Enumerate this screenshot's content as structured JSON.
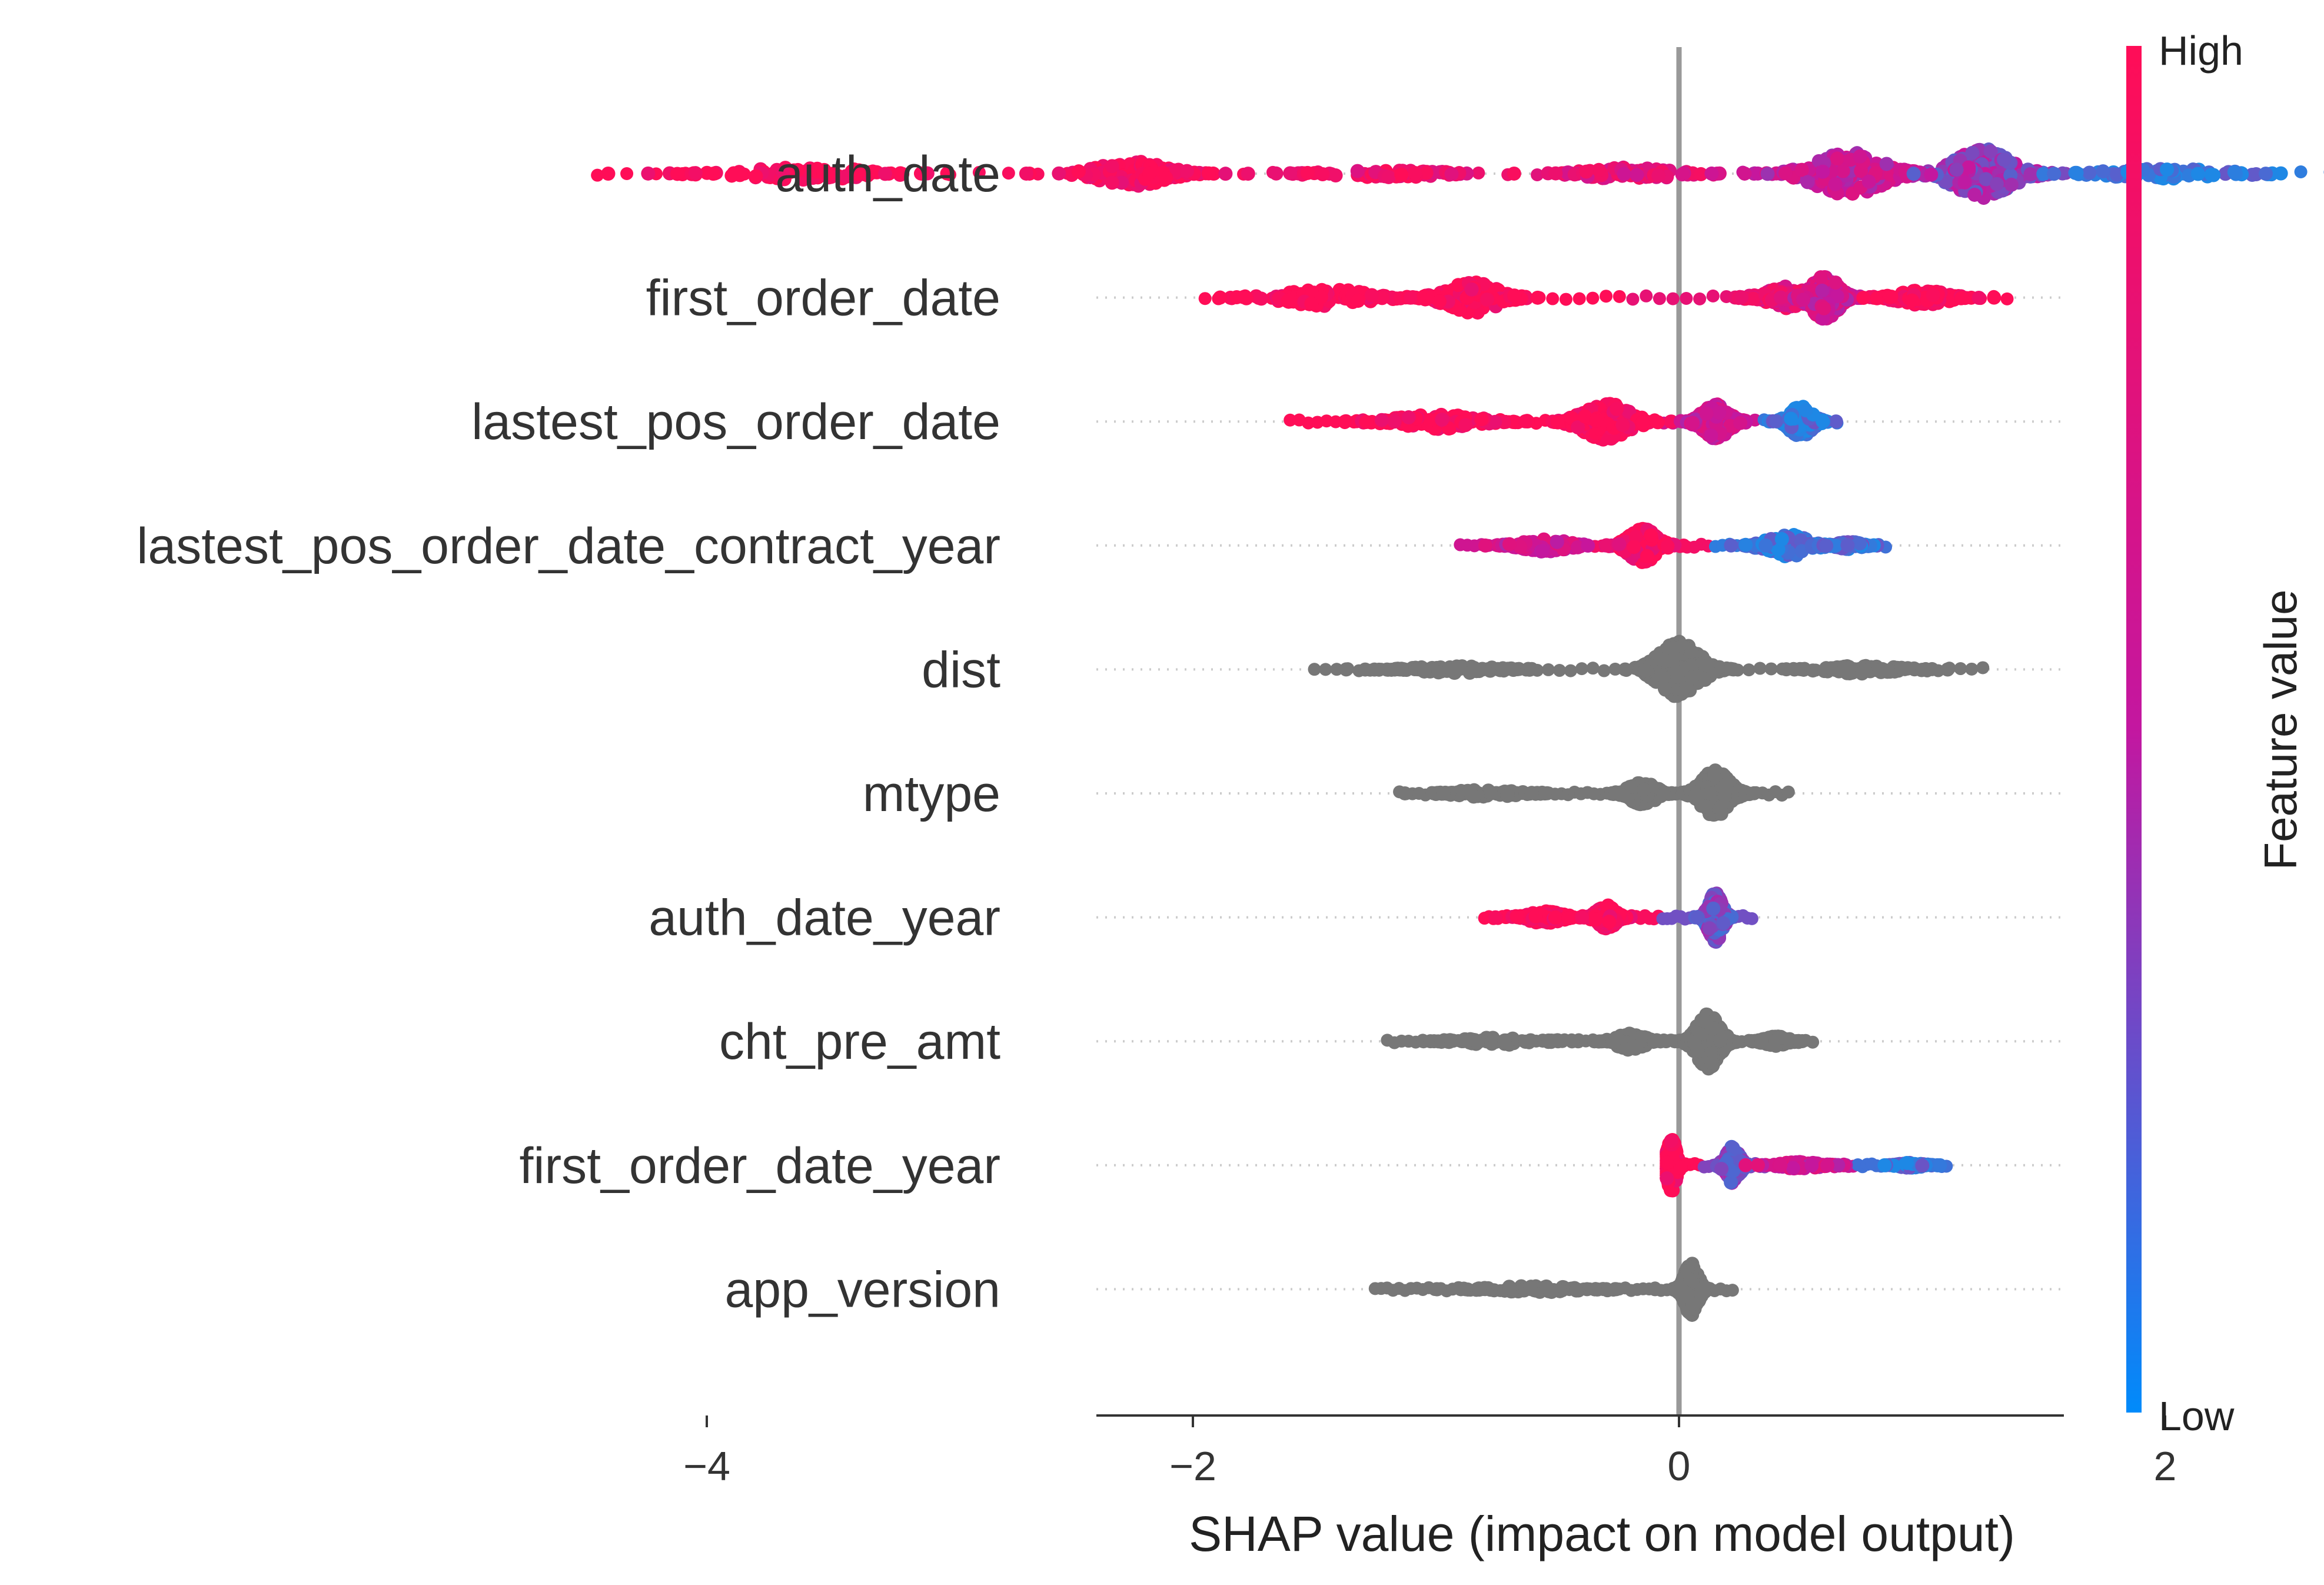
{
  "chart_data": {
    "type": "scatter",
    "subtype": "shap-beeswarm-summary",
    "title": "",
    "xlabel": "SHAP value (impact on model output)",
    "ylabel": "",
    "xlim": [
      -4.8,
      3.2
    ],
    "xticks": [
      {
        "value": -4,
        "label": "−4"
      },
      {
        "value": -2,
        "label": "−2"
      },
      {
        "value": 0,
        "label": "0"
      },
      {
        "value": 2,
        "label": "2"
      }
    ],
    "grid": "dotted horizontal guide per feature",
    "zero_line": true,
    "colorbar": {
      "title": "Feature value",
      "high_label": "High",
      "low_label": "Low",
      "high_color": "#ff0d57",
      "mid_color": "#c317a0",
      "low_color": "#1e88e5",
      "placement": "right"
    },
    "missing_color": "#777777",
    "features": [
      {
        "name": "auth_date",
        "min": -4.45,
        "max": 2.8,
        "colored": true,
        "clusters": [
          {
            "center": -3.6,
            "spread": 0.55,
            "height": 0.1,
            "color_value": 1.0
          },
          {
            "center": -2.25,
            "spread": 0.3,
            "height": 0.2,
            "color_value": 0.95
          },
          {
            "center": -1.2,
            "spread": 0.45,
            "height": 0.06,
            "color_value": 0.85
          },
          {
            "center": -0.2,
            "spread": 0.35,
            "height": 0.1,
            "color_value": 0.75
          },
          {
            "center": 0.7,
            "spread": 0.3,
            "height": 0.35,
            "color_value": 0.55
          },
          {
            "center": 1.25,
            "spread": 0.25,
            "height": 0.4,
            "color_value": 0.35
          },
          {
            "center": 2.0,
            "spread": 0.5,
            "height": 0.08,
            "color_value": 0.05
          }
        ]
      },
      {
        "name": "first_order_date",
        "min": -1.95,
        "max": 1.35,
        "colored": true,
        "clusters": [
          {
            "center": -1.45,
            "spread": 0.35,
            "height": 0.14,
            "color_value": 1.0
          },
          {
            "center": -0.85,
            "spread": 0.22,
            "height": 0.25,
            "color_value": 1.0
          },
          {
            "center": 0.45,
            "spread": 0.2,
            "height": 0.18,
            "color_value": 0.8
          },
          {
            "center": 0.6,
            "spread": 0.12,
            "height": 0.35,
            "color_value": 0.6
          },
          {
            "center": 1.0,
            "spread": 0.22,
            "height": 0.12,
            "color_value": 1.0
          }
        ]
      },
      {
        "name": "lastest_pos_order_date",
        "min": -1.6,
        "max": 0.65,
        "colored": true,
        "clusters": [
          {
            "center": -1.0,
            "spread": 0.35,
            "height": 0.12,
            "color_value": 1.0
          },
          {
            "center": -0.3,
            "spread": 0.2,
            "height": 0.3,
            "color_value": 1.0
          },
          {
            "center": 0.15,
            "spread": 0.12,
            "height": 0.28,
            "color_value": 0.6
          },
          {
            "center": 0.5,
            "spread": 0.1,
            "height": 0.25,
            "color_value": 0.08
          }
        ]
      },
      {
        "name": "lastest_pos_order_date_contract_year",
        "min": -0.9,
        "max": 0.85,
        "colored": true,
        "clusters": [
          {
            "center": -0.55,
            "spread": 0.2,
            "height": 0.1,
            "color_value": 0.6
          },
          {
            "center": -0.15,
            "spread": 0.12,
            "height": 0.28,
            "color_value": 0.9
          },
          {
            "center": 0.45,
            "spread": 0.18,
            "height": 0.18,
            "color_value": 0.05
          },
          {
            "center": 0.7,
            "spread": 0.1,
            "height": 0.06,
            "color_value": 0.1
          }
        ]
      },
      {
        "name": "dist",
        "min": -1.5,
        "max": 1.25,
        "colored": false,
        "clusters": [
          {
            "center": -0.9,
            "spread": 0.35,
            "height": 0.06
          },
          {
            "center": 0.0,
            "spread": 0.18,
            "height": 0.45
          },
          {
            "center": 0.75,
            "spread": 0.3,
            "height": 0.07
          }
        ]
      },
      {
        "name": "mtype",
        "min": -1.15,
        "max": 0.45,
        "colored": false,
        "clusters": [
          {
            "center": -0.8,
            "spread": 0.25,
            "height": 0.06
          },
          {
            "center": -0.15,
            "spread": 0.12,
            "height": 0.18
          },
          {
            "center": 0.15,
            "spread": 0.12,
            "height": 0.38
          }
        ]
      },
      {
        "name": "auth_date_year",
        "min": -0.8,
        "max": 0.3,
        "colored": true,
        "clusters": [
          {
            "center": -0.55,
            "spread": 0.15,
            "height": 0.1,
            "color_value": 1.0
          },
          {
            "center": -0.3,
            "spread": 0.08,
            "height": 0.2,
            "color_value": 0.95
          },
          {
            "center": 0.15,
            "spread": 0.06,
            "height": 0.4,
            "color_value": 0.25
          }
        ]
      },
      {
        "name": "cht_pre_amt",
        "min": -1.2,
        "max": 0.55,
        "colored": false,
        "clusters": [
          {
            "center": -0.75,
            "spread": 0.3,
            "height": 0.06
          },
          {
            "center": -0.2,
            "spread": 0.12,
            "height": 0.14
          },
          {
            "center": 0.12,
            "spread": 0.1,
            "height": 0.45
          },
          {
            "center": 0.4,
            "spread": 0.1,
            "height": 0.08
          }
        ]
      },
      {
        "name": "first_order_date_year",
        "min": -0.05,
        "max": 1.1,
        "colored": true,
        "clusters": [
          {
            "center": -0.03,
            "spread": 0.04,
            "height": 0.42,
            "color_value": 1.0
          },
          {
            "center": 0.22,
            "spread": 0.06,
            "height": 0.3,
            "color_value": 0.3
          },
          {
            "center": 0.5,
            "spread": 0.15,
            "height": 0.06,
            "color_value": 0.6
          },
          {
            "center": 0.95,
            "spread": 0.1,
            "height": 0.04,
            "color_value": 0.1
          }
        ]
      },
      {
        "name": "app_version",
        "min": -1.25,
        "max": 0.22,
        "colored": false,
        "clusters": [
          {
            "center": -0.6,
            "spread": 0.35,
            "height": 0.05
          },
          {
            "center": 0.05,
            "spread": 0.06,
            "height": 0.42
          }
        ]
      }
    ]
  }
}
